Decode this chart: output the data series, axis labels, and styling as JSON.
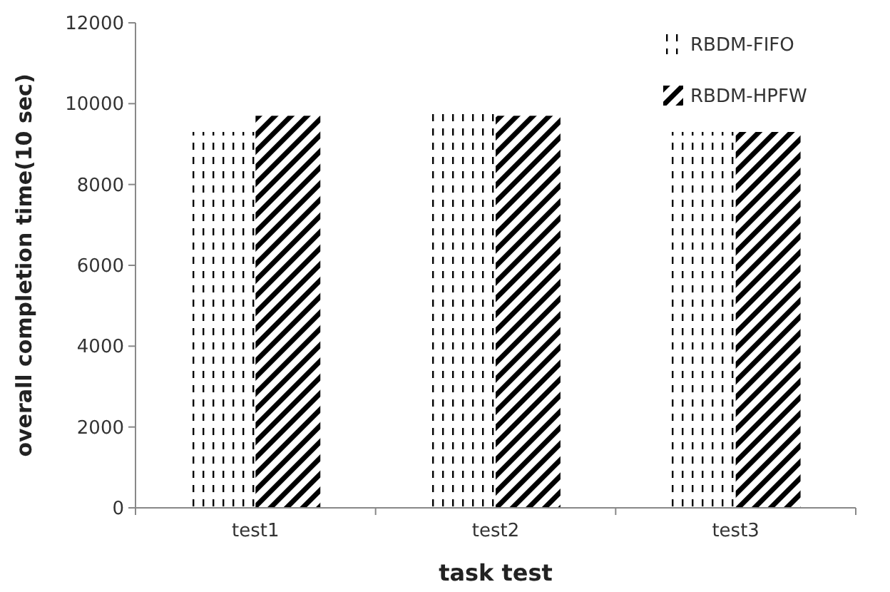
{
  "chart_data": {
    "type": "bar",
    "xlabel": "task test",
    "ylabel": "overall completion time(10 sec)",
    "categories": [
      "test1",
      "test2",
      "test3"
    ],
    "series": [
      {
        "name": "RBDM-FIFO",
        "color": "#000000",
        "values": [
          9300,
          9750,
          9300
        ]
      },
      {
        "name": "RBDM-HPFW",
        "color": "#000000",
        "values": [
          9700,
          9700,
          9300
        ]
      }
    ],
    "ylim": [
      0,
      12000
    ],
    "yticks": [
      0,
      2000,
      4000,
      6000,
      8000,
      10000,
      12000
    ],
    "legend": "top right"
  }
}
